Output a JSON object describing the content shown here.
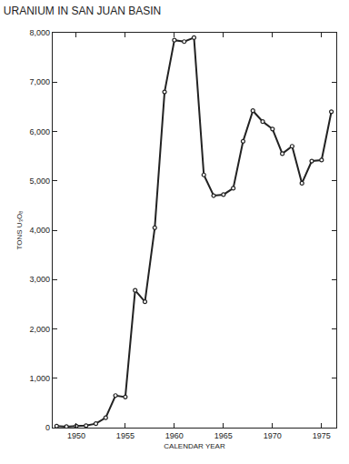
{
  "chart_data": {
    "type": "line",
    "title": "URANIUM IN SAN JUAN BASIN",
    "x_label": "CALENDAR YEAR",
    "y_label": "TONS U₃O₈",
    "x": [
      1948,
      1949,
      1950,
      1951,
      1952,
      1953,
      1954,
      1955,
      1956,
      1957,
      1958,
      1959,
      1960,
      1961,
      1962,
      1963,
      1964,
      1965,
      1966,
      1967,
      1968,
      1969,
      1970,
      1971,
      1972,
      1973,
      1974,
      1975,
      1976
    ],
    "values": [
      30,
      20,
      30,
      40,
      80,
      200,
      650,
      620,
      2780,
      2550,
      4050,
      6800,
      7850,
      7820,
      7900,
      5120,
      4700,
      4720,
      4850,
      5800,
      6420,
      6200,
      6050,
      5550,
      5700,
      4950,
      5400,
      5420,
      6400
    ],
    "color": "#222222",
    "marker": "circle",
    "line_style": "solid",
    "xlim": [
      1947.6,
      1976.5
    ],
    "xticks": [
      1950,
      1955,
      1960,
      1965,
      1970,
      1975
    ],
    "ylim": [
      0,
      8000
    ],
    "yticks": [
      0,
      {
        "value": 1000,
        "label": "1,000"
      },
      {
        "value": 2000,
        "label": "2,000"
      },
      {
        "value": 3000,
        "label": "3,000"
      },
      {
        "value": 4000,
        "label": "4,000"
      },
      {
        "value": 5000,
        "label": "5,000"
      },
      {
        "value": 6000,
        "label": "6,000"
      },
      {
        "value": 7000,
        "label": "7,000"
      },
      {
        "value": 8000,
        "label": "8,000"
      }
    ],
    "grid": false
  }
}
